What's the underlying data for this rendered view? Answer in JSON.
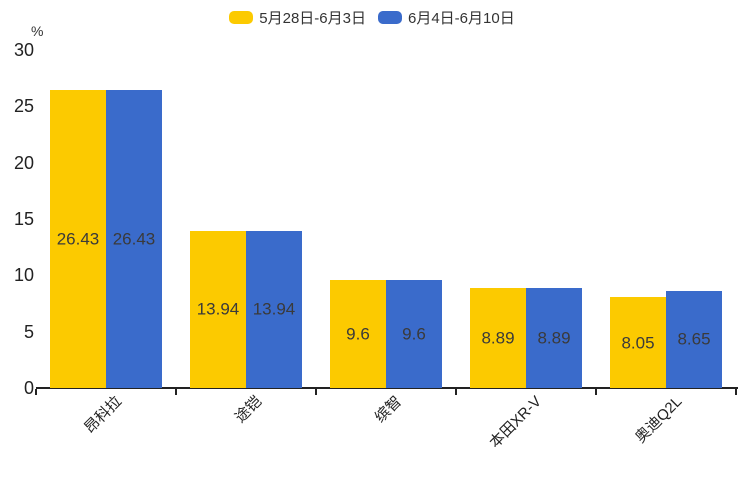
{
  "chart_data": {
    "type": "bar",
    "title": "",
    "xlabel": "",
    "ylabel": "%",
    "ylim": [
      0,
      30
    ],
    "yticks": [
      0,
      5,
      10,
      15,
      20,
      25,
      30
    ],
    "grid": false,
    "legend_position": "top-center",
    "value_label_position": "inside-center",
    "categories": [
      "昂科拉",
      "途铠",
      "缤智",
      "本田XR-V",
      "奥迪Q2L"
    ],
    "series": [
      {
        "name": "5月28日-6月3日",
        "color": "#FCCA00",
        "values": [
          26.43,
          13.94,
          9.6,
          8.89,
          8.05
        ]
      },
      {
        "name": "6月4日-6月10日",
        "color": "#3A6BCB",
        "values": [
          26.43,
          13.94,
          9.6,
          8.89,
          8.65
        ]
      }
    ],
    "value_label_color": "#3a3a3a",
    "axis_color": "#222222",
    "background": "#ffffff"
  }
}
